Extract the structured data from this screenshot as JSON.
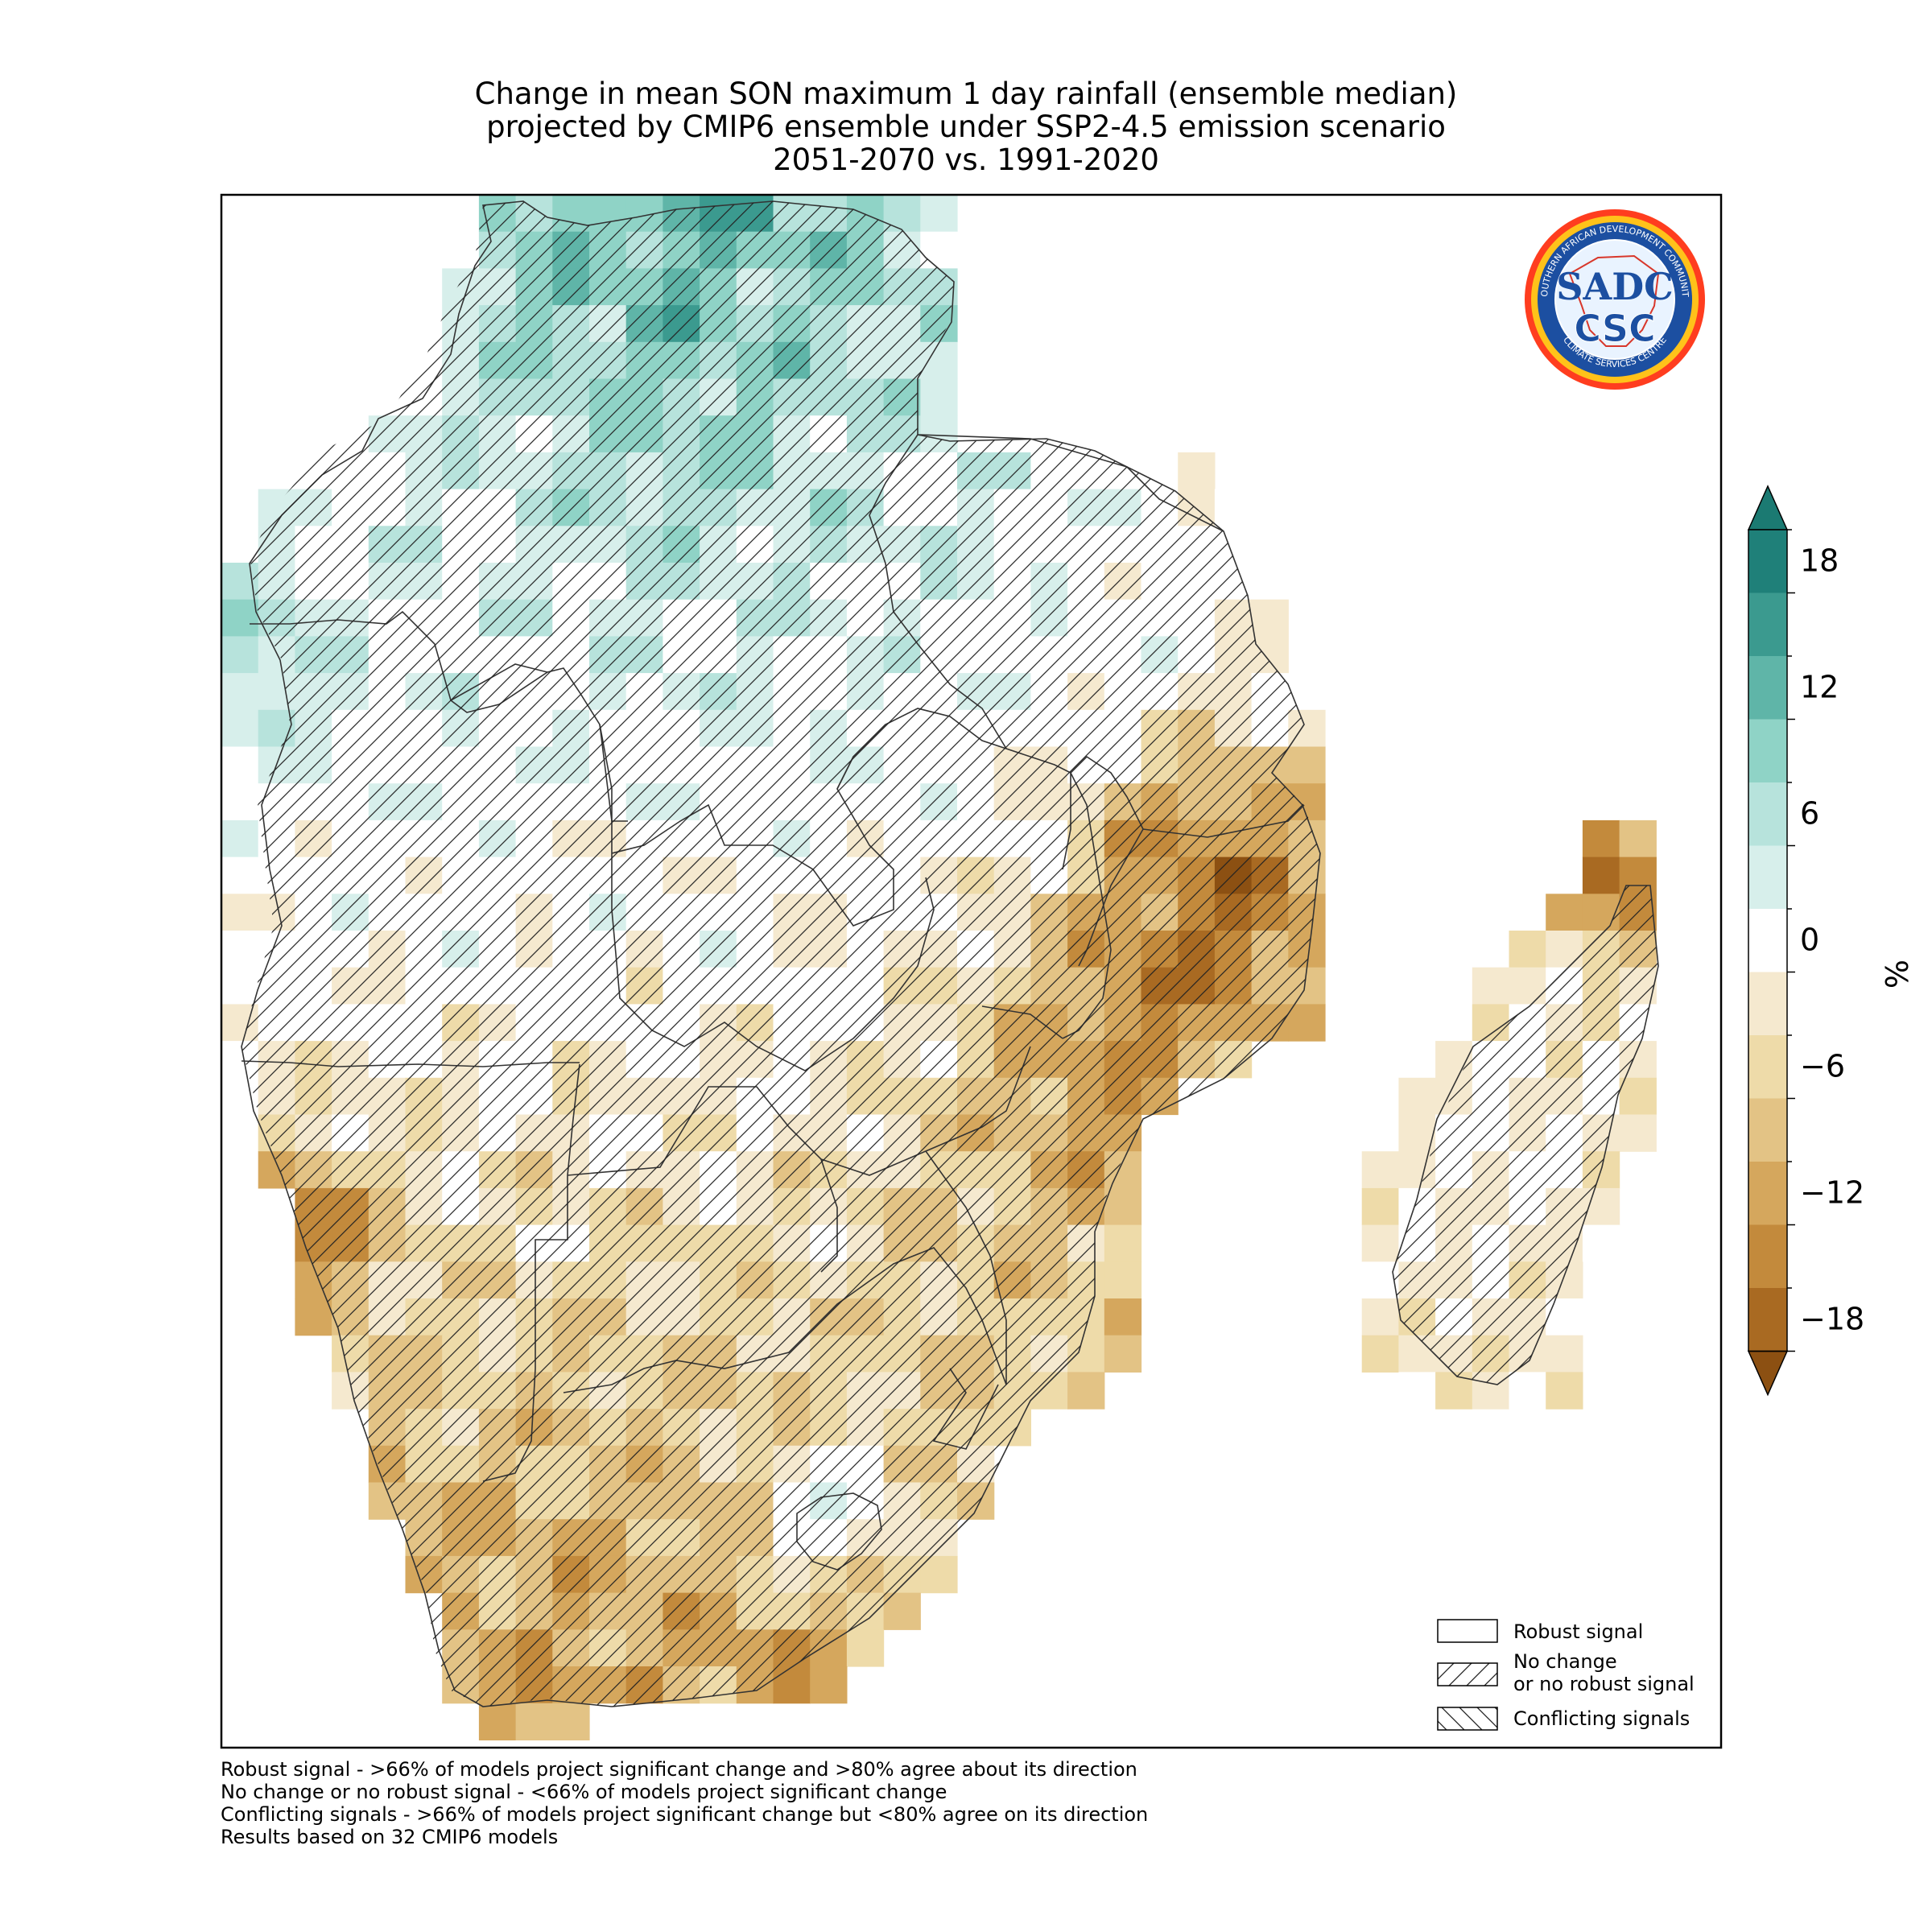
{
  "title": {
    "line1": "Change in mean SON maximum 1 day rainfall (ensemble median)",
    "line2": "projected by CMIP6 ensemble under SSP2-4.5 emission scenario",
    "line3": "2051-2070 vs. 1991-2020"
  },
  "colorbar": {
    "unit": "%",
    "tick_labels": [
      "18",
      "12",
      "6",
      "0",
      "−6",
      "−12",
      "−18"
    ],
    "bins": [
      {
        "range": "> 21",
        "color": "#1b7a72"
      },
      {
        "range": "18 to 21",
        "color": "#1f8079"
      },
      {
        "range": "15 to 18",
        "color": "#3b9a8f"
      },
      {
        "range": "12 to 15",
        "color": "#5fb5a8"
      },
      {
        "range": "9 to 12",
        "color": "#8fd3c6"
      },
      {
        "range": "6 to 9",
        "color": "#b7e3dc"
      },
      {
        "range": "3 to 6",
        "color": "#d7efeb"
      },
      {
        "range": "-3 to 3",
        "color": "#ffffff"
      },
      {
        "range": "-6 to -3",
        "color": "#f5e9cf"
      },
      {
        "range": "-9 to -6",
        "color": "#eedba9"
      },
      {
        "range": "-12 to -9",
        "color": "#e3c385"
      },
      {
        "range": "-15 to -12",
        "color": "#d5a75d"
      },
      {
        "range": "-18 to -15",
        "color": "#c38a3c"
      },
      {
        "range": "-21 to -18",
        "color": "#a96a22"
      },
      {
        "range": "< -21",
        "color": "#8c5012"
      }
    ]
  },
  "legend": {
    "robust": "Robust signal",
    "nochange_line1": "No change",
    "nochange_line2": "or no robust signal",
    "conflicting": "Conflicting signals"
  },
  "footnotes": {
    "line1": "Robust signal - >66% of models project significant change and >80% agree about its direction",
    "line2": "No change or no robust signal - <66% of models project significant change",
    "line3": "Conflicting signals - >66% of models project significant change but <80% agree on its direction",
    "line4": "Results based on 32 CMIP6 models"
  },
  "logo": {
    "ring_text_top": "SOUTHERN AFRICAN DEVELOPMENT COMMUNITY",
    "ring_text_bottom": "CLIMATE SERVICES CENTRE",
    "mark_top": "SADC",
    "mark_bottom": "CSC"
  }
}
